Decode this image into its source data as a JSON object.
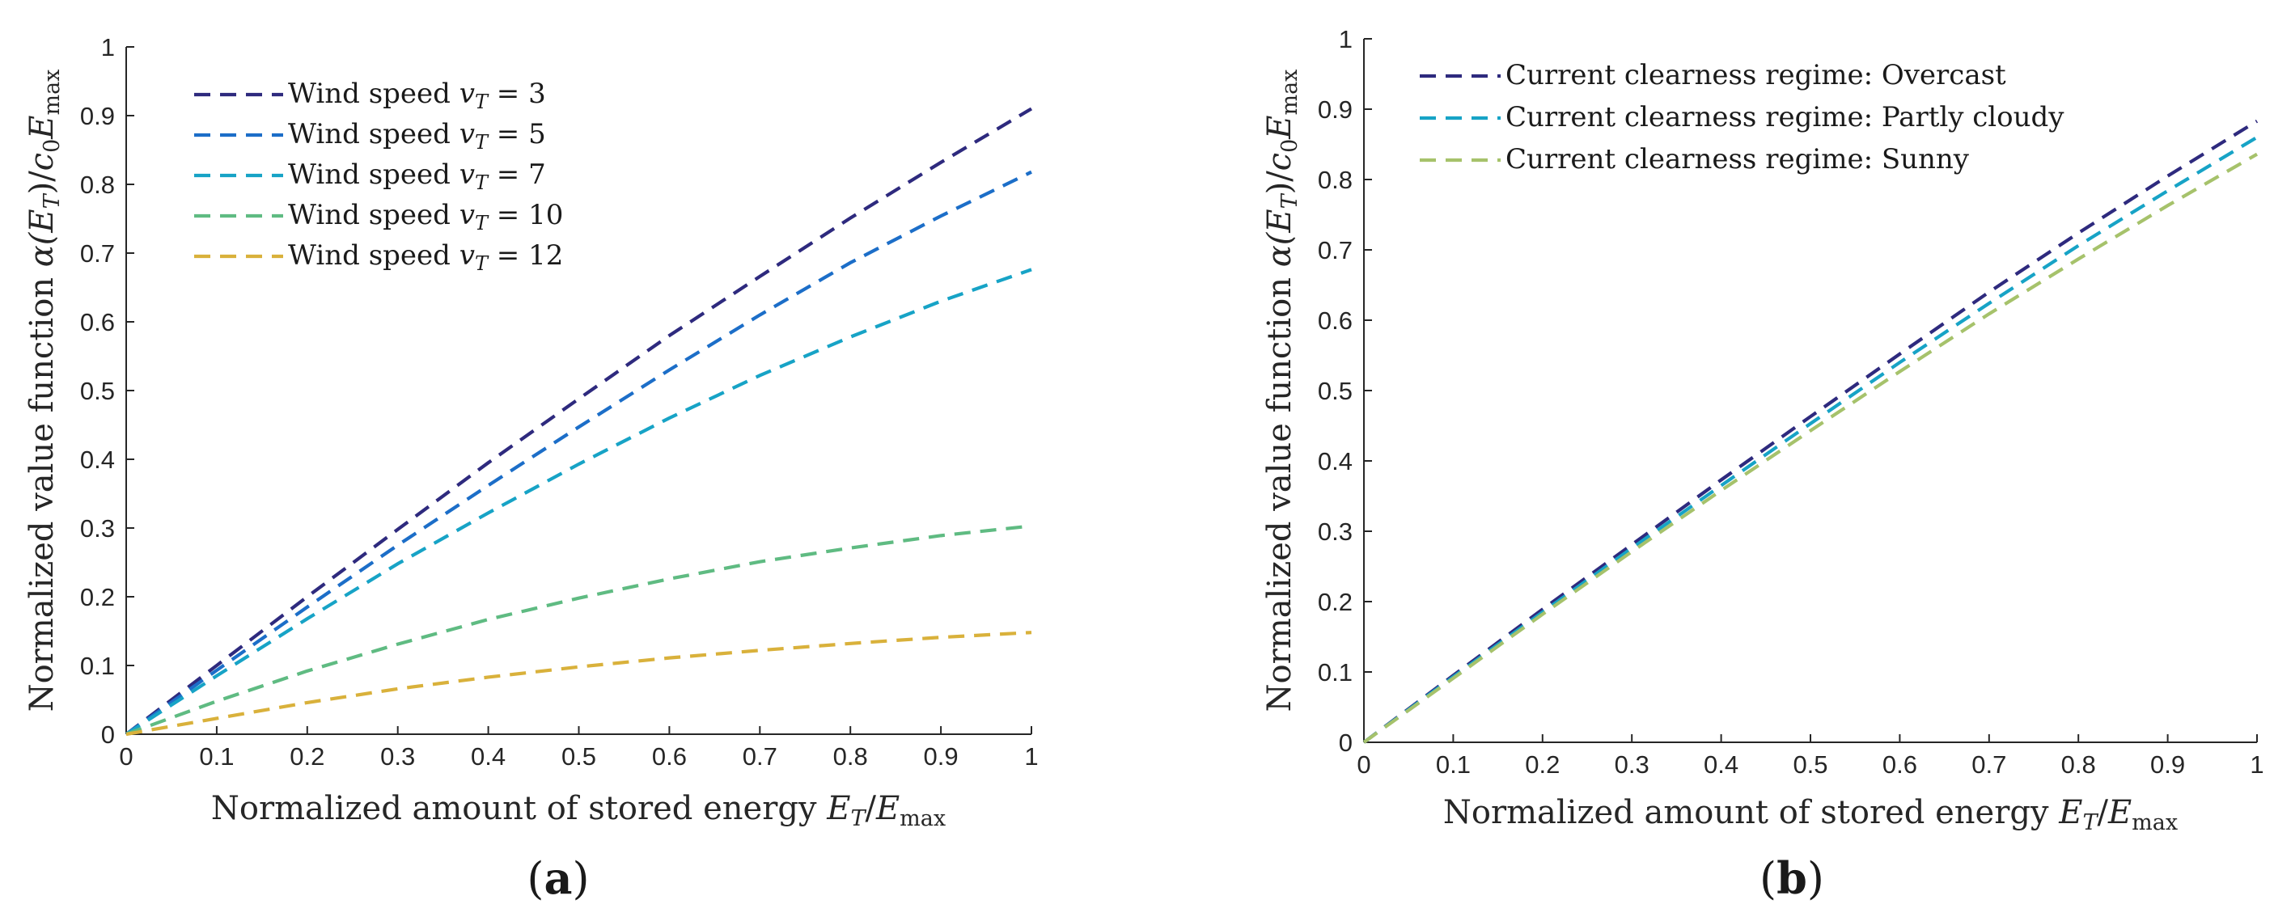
{
  "chart_data": [
    {
      "id": "a",
      "type": "line",
      "panel_label": "(a)",
      "panel_letter": "a",
      "xlabel": "Normalized amount of stored energy E_T/E_max",
      "ylabel": "Normalized value function α(E_T)/c_0 E_max",
      "xlabel_parts": {
        "text": "Normalized amount of stored energy ",
        "math_var": "E",
        "math_sub": "T",
        "math_div": "/",
        "math_var2": "E",
        "math_sub2": "max"
      },
      "ylabel_parts": {
        "text": "Normalized value function ",
        "math_open": "α(",
        "math_var": "E",
        "math_sub": "T",
        "math_close": ")/",
        "math_var2": "c",
        "math_sub2": "0",
        "math_var3": "E",
        "math_sub3": "max"
      },
      "xlim": [
        0,
        1
      ],
      "ylim": [
        0,
        1
      ],
      "xticks": [
        "0",
        "0.1",
        "0.2",
        "0.3",
        "0.4",
        "0.5",
        "0.6",
        "0.7",
        "0.8",
        "0.9",
        "1"
      ],
      "yticks": [
        "0",
        "0.1",
        "0.2",
        "0.3",
        "0.4",
        "0.5",
        "0.6",
        "0.7",
        "0.8",
        "0.9",
        "1"
      ],
      "legend_position": "top-left",
      "x": [
        0,
        0.1,
        0.2,
        0.3,
        0.4,
        0.5,
        0.6,
        0.7,
        0.8,
        0.9,
        1.0
      ],
      "series": [
        {
          "name": "Wind speed v_T = 3",
          "legend_text": "Wind speed ",
          "legend_math": "v",
          "legend_sub": "T",
          "legend_value": " = 3",
          "color": "#2e2a7e",
          "values": [
            0,
            0.1,
            0.2,
            0.298,
            0.395,
            0.488,
            0.58,
            0.666,
            0.751,
            0.832,
            0.91
          ]
        },
        {
          "name": "Wind speed v_T = 5",
          "legend_text": "Wind speed ",
          "legend_math": "v",
          "legend_sub": "T",
          "legend_value": " = 5",
          "color": "#1c6ec8",
          "values": [
            0,
            0.093,
            0.185,
            0.275,
            0.362,
            0.447,
            0.53,
            0.61,
            0.686,
            0.754,
            0.818
          ]
        },
        {
          "name": "Wind speed v_T = 7",
          "legend_text": "Wind speed ",
          "legend_math": "v",
          "legend_sub": "T",
          "legend_value": " = 7",
          "color": "#17a3c6",
          "values": [
            0,
            0.085,
            0.168,
            0.248,
            0.322,
            0.393,
            0.46,
            0.522,
            0.578,
            0.63,
            0.676
          ]
        },
        {
          "name": "Wind speed v_T = 10",
          "legend_text": "Wind speed ",
          "legend_math": "v",
          "legend_sub": "T",
          "legend_value": " = 10",
          "color": "#5fbb82",
          "values": [
            0,
            0.048,
            0.092,
            0.131,
            0.167,
            0.198,
            0.226,
            0.251,
            0.271,
            0.289,
            0.303
          ]
        },
        {
          "name": "Wind speed v_T = 12",
          "legend_text": "Wind speed ",
          "legend_math": "v",
          "legend_sub": "T",
          "legend_value": " = 12",
          "color": "#d9b13b",
          "values": [
            0,
            0.023,
            0.046,
            0.066,
            0.083,
            0.098,
            0.111,
            0.122,
            0.132,
            0.141,
            0.148
          ]
        }
      ]
    },
    {
      "id": "b",
      "type": "line",
      "panel_label": "(b)",
      "panel_letter": "b",
      "xlabel": "Normalized amount of stored energy E_T/E_max",
      "ylabel": "Normalized value function α(E_T)/c_0 E_max",
      "xlabel_parts": {
        "text": "Normalized amount of stored energy ",
        "math_var": "E",
        "math_sub": "T",
        "math_div": "/",
        "math_var2": "E",
        "math_sub2": "max"
      },
      "ylabel_parts": {
        "text": "Normalized value function ",
        "math_open": "α(",
        "math_var": "E",
        "math_sub": "T",
        "math_close": ")/",
        "math_var2": "c",
        "math_sub2": "0",
        "math_var3": "E",
        "math_sub3": "max"
      },
      "xlim": [
        0,
        1
      ],
      "ylim": [
        0,
        1
      ],
      "xticks": [
        "0",
        "0.1",
        "0.2",
        "0.3",
        "0.4",
        "0.5",
        "0.6",
        "0.7",
        "0.8",
        "0.9",
        "1"
      ],
      "yticks": [
        "0",
        "0.1",
        "0.2",
        "0.3",
        "0.4",
        "0.5",
        "0.6",
        "0.7",
        "0.8",
        "0.9",
        "1"
      ],
      "legend_position": "top-left",
      "x": [
        0,
        0.1,
        0.2,
        0.3,
        0.4,
        0.5,
        0.6,
        0.7,
        0.8,
        0.9,
        1.0
      ],
      "series": [
        {
          "name": "Current clearness regime: Overcast",
          "legend_text": "Current clearness regime: Overcast",
          "color": "#2e2a7e",
          "values": [
            0,
            0.095,
            0.189,
            0.281,
            0.373,
            0.463,
            0.552,
            0.64,
            0.724,
            0.805,
            0.883
          ]
        },
        {
          "name": "Current clearness regime: Partly cloudy",
          "legend_text": "Current clearness regime: Partly cloudy",
          "color": "#17a3c6",
          "values": [
            0,
            0.093,
            0.185,
            0.276,
            0.365,
            0.453,
            0.54,
            0.624,
            0.706,
            0.784,
            0.86
          ]
        },
        {
          "name": "Current clearness regime: Sunny",
          "legend_text": "Current clearness regime: Sunny",
          "color": "#a6c26b",
          "values": [
            0,
            0.091,
            0.182,
            0.271,
            0.358,
            0.443,
            0.527,
            0.609,
            0.687,
            0.763,
            0.836
          ]
        }
      ]
    }
  ]
}
